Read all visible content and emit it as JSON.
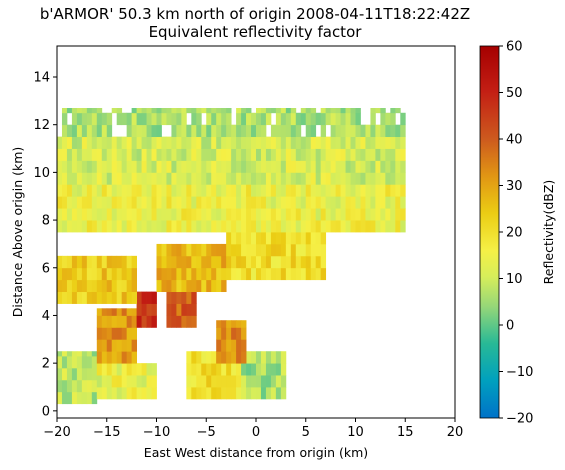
{
  "chart_data": {
    "type": "heatmap",
    "title": "b'ARMOR' 50.3 km north of origin 2008-04-11T18:22:42Z",
    "subtitle": "Equivalent reflectivity factor",
    "xlabel": "East West distance from origin (km)",
    "ylabel": "Distance Above origin (km)",
    "xlim": [
      -20,
      20
    ],
    "ylim": [
      -0.3,
      15.3
    ],
    "xticks": [
      -20,
      -15,
      -10,
      -5,
      0,
      5,
      10,
      15,
      20
    ],
    "yticks": [
      0,
      2,
      4,
      6,
      8,
      10,
      12,
      14
    ],
    "colorbar": {
      "label": "Reflectivity(dBZ)",
      "range": [
        -20,
        60
      ],
      "ticks": [
        -20,
        -10,
        0,
        10,
        20,
        30,
        40,
        50,
        60
      ],
      "colormap": "pyart_HomeyerRainbow"
    },
    "grid": false,
    "regions": [
      {
        "x": [
          -20,
          -16
        ],
        "y": [
          0.3,
          2.5
        ],
        "dbz": 8
      },
      {
        "x": [
          -16,
          -10
        ],
        "y": [
          0.5,
          2.0
        ],
        "dbz": 14
      },
      {
        "x": [
          -7,
          -1.5
        ],
        "y": [
          0.5,
          2.5
        ],
        "dbz": 20
      },
      {
        "x": [
          -1.5,
          3
        ],
        "y": [
          0.5,
          2.5
        ],
        "dbz": 6
      },
      {
        "x": [
          -16,
          -12
        ],
        "y": [
          2.0,
          4.3
        ],
        "dbz": 32
      },
      {
        "x": [
          -12,
          -10
        ],
        "y": [
          3.5,
          5.0
        ],
        "dbz": 47
      },
      {
        "x": [
          -9,
          -6
        ],
        "y": [
          3.5,
          5.0
        ],
        "dbz": 40
      },
      {
        "x": [
          -4,
          -1
        ],
        "y": [
          2.0,
          3.8
        ],
        "dbz": 33
      },
      {
        "x": [
          -20,
          -12
        ],
        "y": [
          4.5,
          6.5
        ],
        "dbz": 24
      },
      {
        "x": [
          -10,
          -3
        ],
        "y": [
          5.0,
          7.0
        ],
        "dbz": 27
      },
      {
        "x": [
          -3,
          7
        ],
        "y": [
          5.5,
          7.5
        ],
        "dbz": 20
      },
      {
        "x": [
          -20,
          15
        ],
        "y": [
          7.5,
          9.5
        ],
        "dbz": 15
      },
      {
        "x": [
          -20,
          15
        ],
        "y": [
          9.5,
          11.5
        ],
        "dbz": 11
      },
      {
        "x": [
          -19.5,
          15
        ],
        "y": [
          11.5,
          12.7
        ],
        "dbz": 7
      }
    ]
  }
}
